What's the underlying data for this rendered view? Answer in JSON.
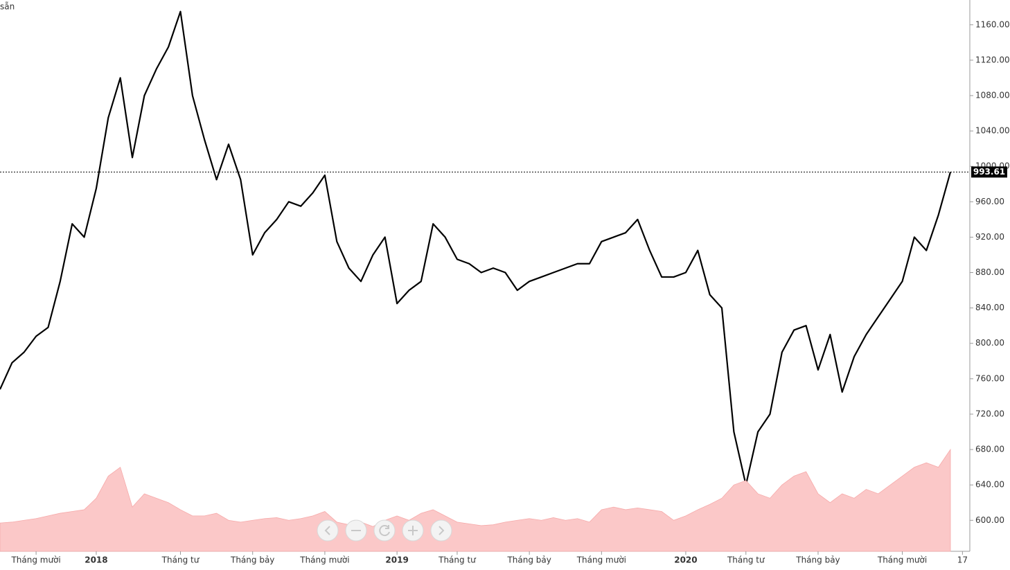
{
  "corner_text": "sẵn",
  "chart_data": {
    "type": "line",
    "categories": [
      null,
      null,
      null,
      "Tháng mười",
      null,
      null,
      null,
      null,
      "2018",
      null,
      null,
      null,
      null,
      null,
      null,
      "Tháng tư",
      null,
      null,
      null,
      null,
      null,
      "Tháng bảy",
      null,
      null,
      null,
      null,
      null,
      "Tháng mười",
      null,
      null,
      null,
      null,
      null,
      "2019",
      null,
      null,
      null,
      null,
      "Tháng tư",
      null,
      null,
      null,
      null,
      null,
      "Tháng bảy",
      null,
      null,
      null,
      null,
      null,
      "Tháng mười",
      null,
      null,
      null,
      null,
      null,
      null,
      "2020",
      null,
      null,
      null,
      null,
      "Tháng tư",
      null,
      null,
      null,
      null,
      null,
      "Tháng bảy",
      null,
      null,
      null,
      null,
      null,
      null,
      "Tháng mười",
      null,
      null,
      null,
      null,
      "17"
    ],
    "series": [
      {
        "color": "#000000",
        "kind": "line",
        "values": [
          748,
          778,
          790,
          808,
          818,
          870,
          935,
          920,
          975,
          1055,
          1100,
          1010,
          1080,
          1110,
          1135,
          1175,
          1080,
          1030,
          985,
          1025,
          985,
          900,
          925,
          940,
          960,
          955,
          970,
          990,
          915,
          885,
          870,
          900,
          920,
          845,
          860,
          870,
          935,
          920,
          895,
          890,
          880,
          885,
          880,
          860,
          870,
          875,
          880,
          885,
          890,
          890,
          915,
          920,
          925,
          940,
          905,
          875,
          875,
          880,
          905,
          855,
          840,
          700,
          640,
          700,
          720,
          790,
          815,
          820,
          770,
          810,
          745,
          785,
          810,
          830,
          850,
          870,
          920,
          905,
          945,
          993.61,
          null
        ]
      },
      {
        "color": "#fbc8c8",
        "kind": "area",
        "values": [
          597,
          598,
          600,
          602,
          605,
          608,
          610,
          612,
          625,
          650,
          660,
          615,
          630,
          625,
          620,
          612,
          605,
          605,
          608,
          600,
          598,
          600,
          602,
          603,
          600,
          602,
          605,
          610,
          598,
          595,
          598,
          593,
          600,
          605,
          600,
          608,
          612,
          605,
          598,
          596,
          594,
          595,
          598,
          600,
          602,
          600,
          603,
          600,
          602,
          598,
          612,
          615,
          612,
          614,
          612,
          610,
          600,
          605,
          612,
          618,
          625,
          640,
          645,
          630,
          625,
          640,
          650,
          655,
          630,
          620,
          630,
          625,
          635,
          630,
          640,
          650,
          660,
          665,
          660,
          680,
          null
        ]
      }
    ],
    "ylim": [
      565,
      1188
    ],
    "yticks": [
      {
        "value": 600,
        "label": "600.00"
      },
      {
        "value": 640,
        "label": "640.00"
      },
      {
        "value": 680,
        "label": "680.00"
      },
      {
        "value": 720,
        "label": "720.00"
      },
      {
        "value": 760,
        "label": "760.00"
      },
      {
        "value": 800,
        "label": "800.00"
      },
      {
        "value": 840,
        "label": "840.00"
      },
      {
        "value": 880,
        "label": "880.00"
      },
      {
        "value": 920,
        "label": "920.00"
      },
      {
        "value": 960,
        "label": "960.00"
      },
      {
        "value": 1000,
        "label": "1000.00"
      },
      {
        "value": 1040,
        "label": "1040.00"
      },
      {
        "value": 1080,
        "label": "1080.00"
      },
      {
        "value": 1120,
        "label": "1120.00"
      },
      {
        "value": 1160,
        "label": "1160.00"
      }
    ],
    "grid": false
  }
}
